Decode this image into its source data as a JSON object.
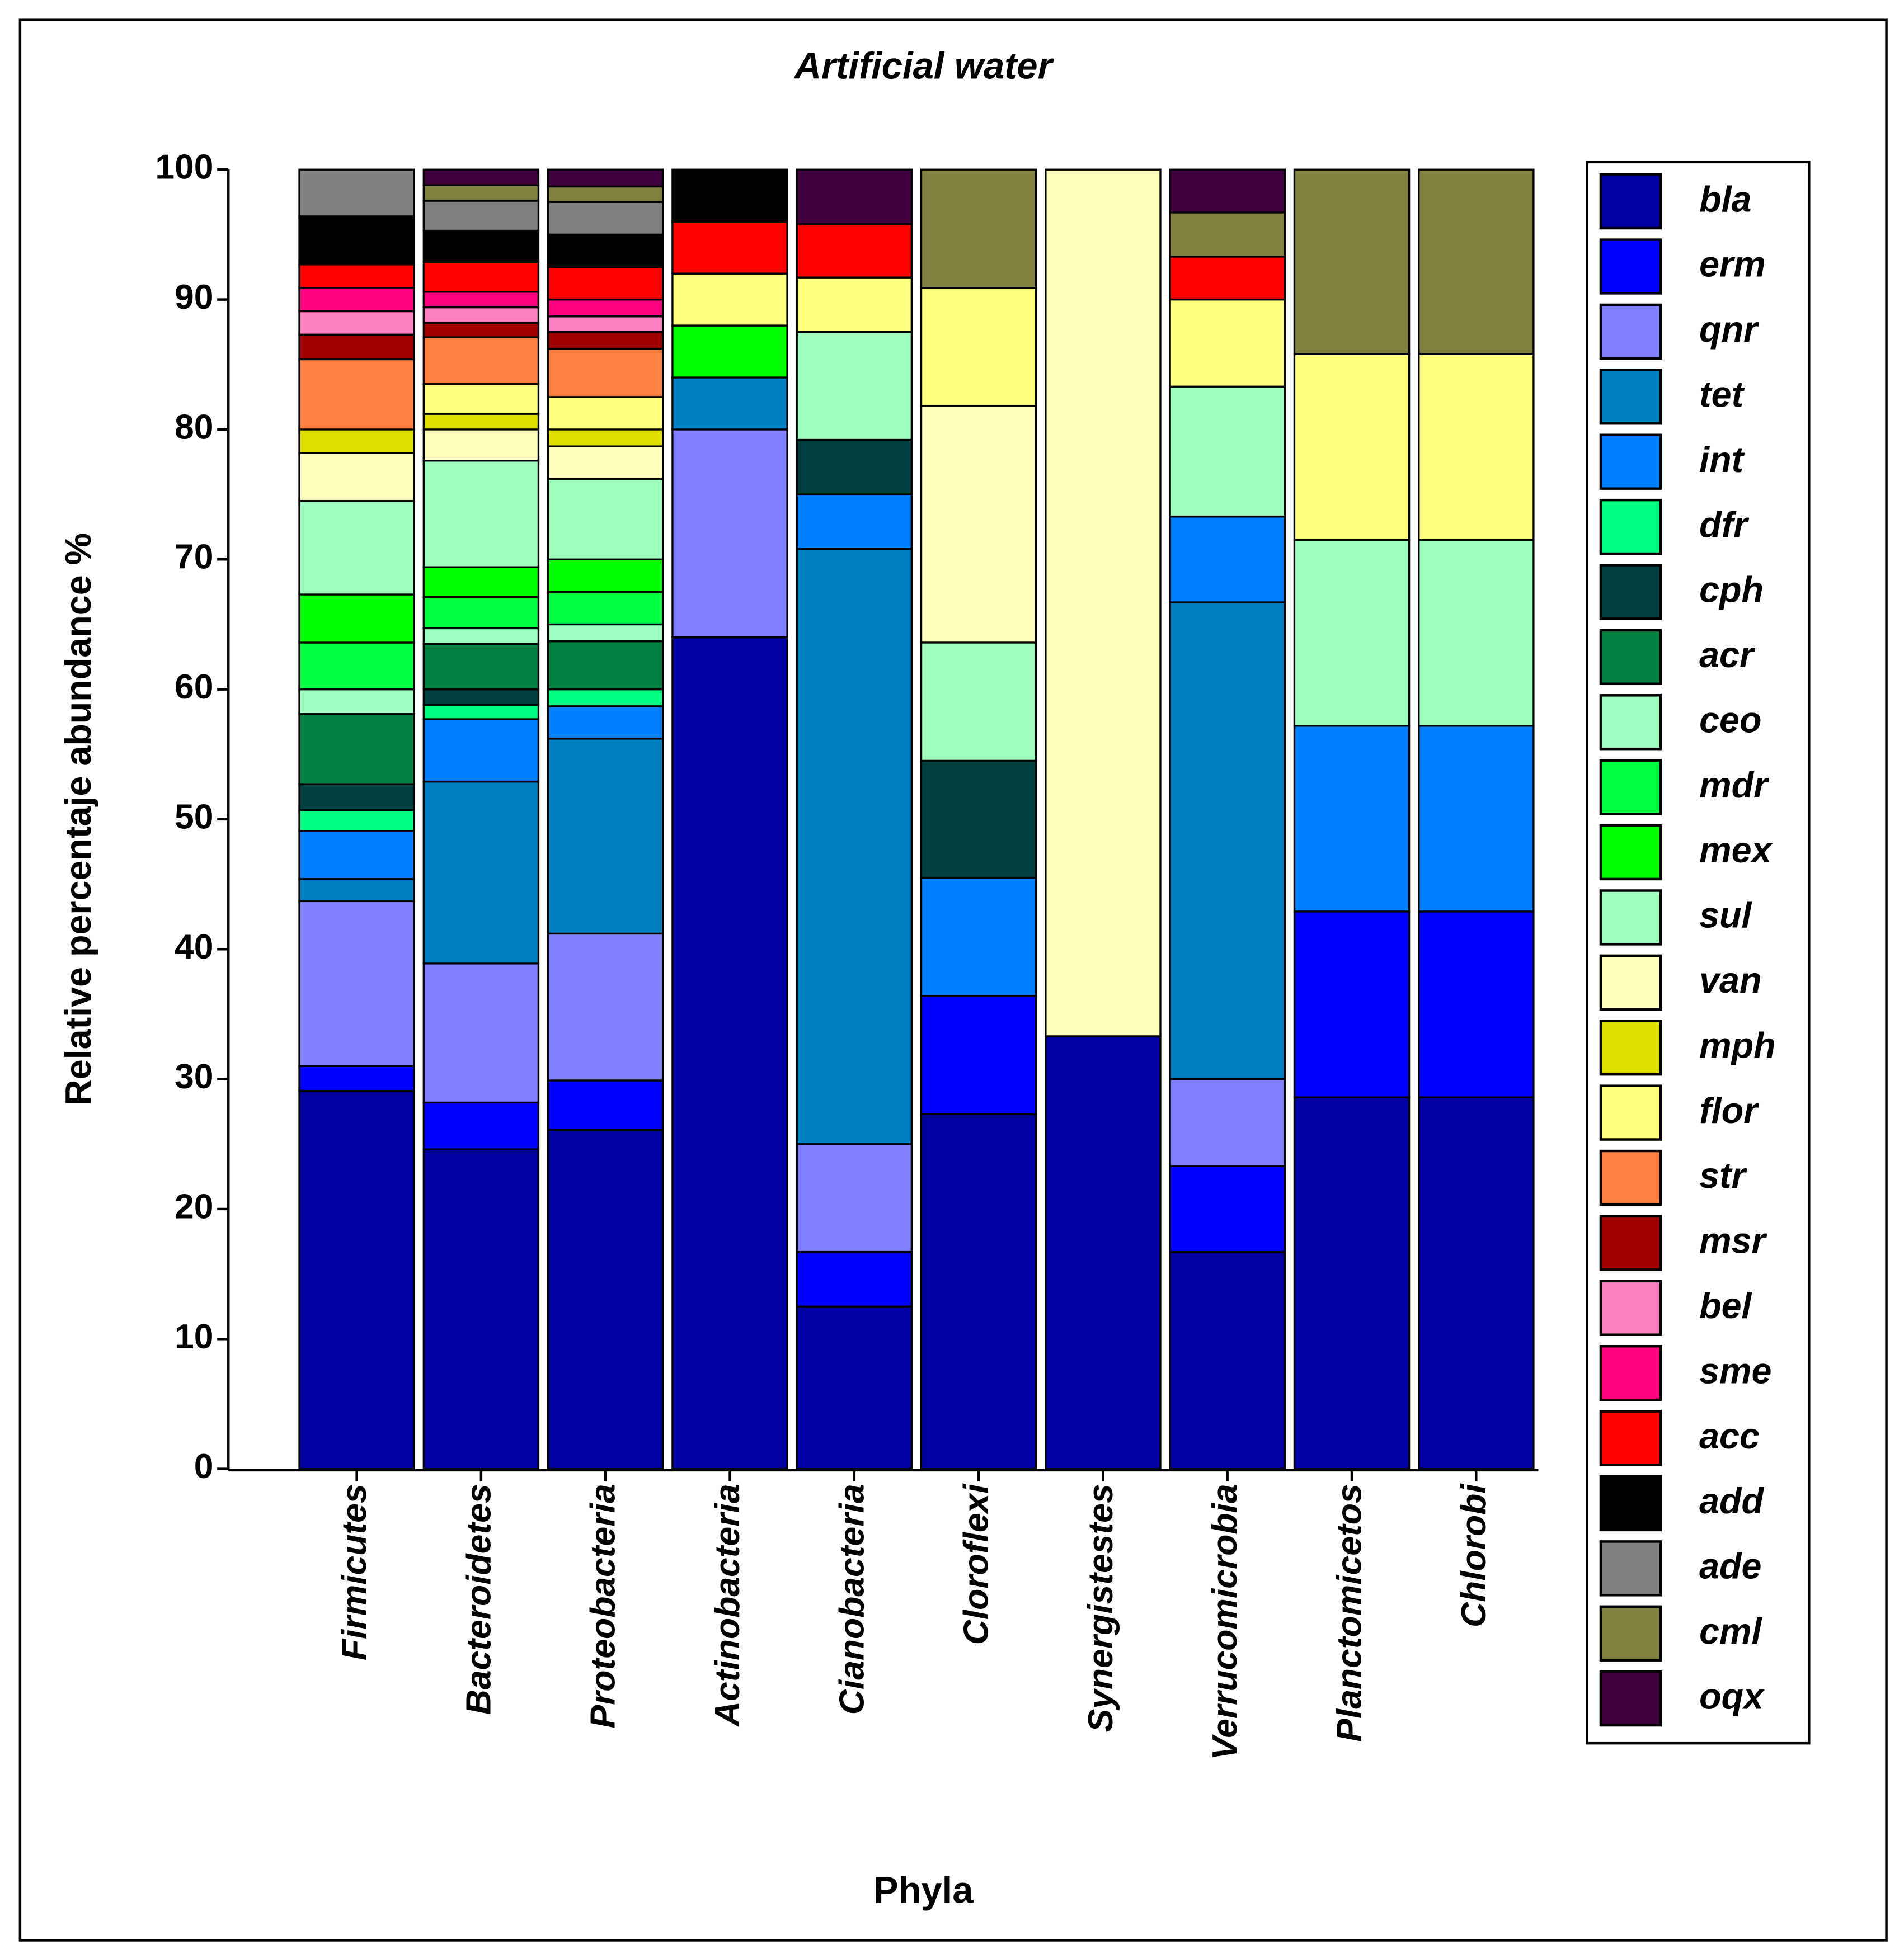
{
  "chart_data": {
    "type": "stacked_bar",
    "title": "Artificial water",
    "xlabel": "Phyla",
    "ylabel": "Relative percentaje abundance %",
    "categories": [
      "Firmicutes",
      "Bacteroidetes",
      "Proteobacteria",
      "Actinobacteria",
      "Cianobacteria",
      "Cloroflexi",
      "Synergistestes",
      "Verrucomicrobia",
      "Planctomicetos",
      "Chlorobi"
    ],
    "ylim": [
      0,
      100
    ],
    "yticks": [
      0,
      10,
      20,
      30,
      40,
      50,
      60,
      70,
      80,
      90,
      100
    ],
    "legend": "right",
    "series": [
      {
        "name": "bla",
        "color": "#0000a0",
        "values": [
          29.1,
          24.6,
          26.1,
          64,
          12.5,
          27.3,
          33.3,
          16.7,
          28.6,
          28.6
        ]
      },
      {
        "name": "erm",
        "color": "#0000ff",
        "values": [
          1.9,
          3.6,
          3.8,
          0,
          4.2,
          9.1,
          0,
          6.6,
          14.3,
          14.3
        ]
      },
      {
        "name": "qnr",
        "color": "#8080ff",
        "values": [
          12.7,
          10.7,
          11.3,
          16,
          8.3,
          0,
          0,
          6.7,
          0,
          0
        ]
      },
      {
        "name": "tet",
        "color": "#0080c0",
        "values": [
          1.7,
          14.0,
          15.0,
          4,
          45.8,
          0,
          0,
          36.7,
          0,
          0
        ]
      },
      {
        "name": "int",
        "color": "#0080ff",
        "values": [
          3.7,
          4.8,
          2.5,
          0,
          4.2,
          9.1,
          0,
          6.6,
          14.3,
          14.3
        ]
      },
      {
        "name": "dfr",
        "color": "#00ff80",
        "values": [
          1.6,
          1.1,
          1.3,
          0,
          0,
          0,
          0,
          0,
          0,
          0
        ]
      },
      {
        "name": "cph",
        "color": "#004040",
        "values": [
          2.0,
          1.2,
          0,
          0,
          4.2,
          9.0,
          0,
          0,
          0,
          0
        ]
      },
      {
        "name": "acr",
        "color": "#008040",
        "values": [
          5.4,
          3.5,
          3.7,
          0,
          0,
          0,
          0,
          0,
          0,
          0
        ]
      },
      {
        "name": "ceo",
        "color": "#a0ffc0",
        "values": [
          1.9,
          1.2,
          1.3,
          0,
          0,
          0,
          0,
          0,
          0,
          0
        ]
      },
      {
        "name": "mdr",
        "color": "#00ff40",
        "values": [
          3.6,
          2.4,
          2.5,
          0,
          0,
          0,
          0,
          0,
          0,
          0
        ]
      },
      {
        "name": "mex",
        "color": "#00ff00",
        "values": [
          3.7,
          2.3,
          2.5,
          4,
          0,
          0,
          0,
          0,
          0,
          0
        ]
      },
      {
        "name": "sul",
        "color": "#a0ffbf",
        "values": [
          7.2,
          8.2,
          6.2,
          0,
          8.3,
          9.1,
          0,
          10,
          14.3,
          14.3
        ]
      },
      {
        "name": "van",
        "color": "#ffffc0",
        "values": [
          3.7,
          2.4,
          2.5,
          0,
          0,
          18.2,
          66.7,
          0,
          0,
          0
        ]
      },
      {
        "name": "mph",
        "color": "#e0e000",
        "values": [
          1.8,
          1.2,
          1.3,
          0,
          0,
          0,
          0,
          0,
          0,
          0
        ]
      },
      {
        "name": "flor",
        "color": "#ffff80",
        "values": [
          0,
          2.3,
          2.5,
          4,
          4.2,
          9.1,
          0,
          6.7,
          14.3,
          14.3
        ]
      },
      {
        "name": "str",
        "color": "#ff8040",
        "values": [
          5.4,
          3.6,
          3.7,
          0,
          0,
          0,
          0,
          0,
          0,
          0
        ]
      },
      {
        "name": "msr",
        "color": "#a00000",
        "values": [
          1.9,
          1.1,
          1.3,
          0,
          0,
          0,
          0,
          0,
          0,
          0
        ]
      },
      {
        "name": "bel",
        "color": "#ff80c0",
        "values": [
          1.8,
          1.2,
          1.2,
          0,
          0,
          0,
          0,
          0,
          0,
          0
        ]
      },
      {
        "name": "sme",
        "color": "#ff0080",
        "values": [
          1.8,
          1.2,
          1.3,
          0,
          0,
          0,
          0,
          0,
          0,
          0
        ]
      },
      {
        "name": "acc",
        "color": "#ff0000",
        "values": [
          1.8,
          2.3,
          2.5,
          4,
          4.1,
          0,
          0,
          3.3,
          0,
          0
        ]
      },
      {
        "name": "add",
        "color": "#000000",
        "values": [
          3.7,
          2.4,
          2.5,
          4,
          0,
          0,
          0,
          0,
          0,
          0
        ]
      },
      {
        "name": "ade",
        "color": "#808080",
        "values": [
          3.6,
          2.3,
          2.5,
          0,
          0,
          0,
          0,
          0,
          0,
          0
        ]
      },
      {
        "name": "cml",
        "color": "#808040",
        "values": [
          0,
          1.2,
          1.2,
          0,
          0,
          9.1,
          0,
          3.4,
          14.2,
          14.2
        ]
      },
      {
        "name": "oqx",
        "color": "#400040",
        "values": [
          0,
          1.2,
          1.3,
          0,
          4.2,
          0,
          0,
          3.3,
          0,
          0
        ]
      }
    ]
  }
}
